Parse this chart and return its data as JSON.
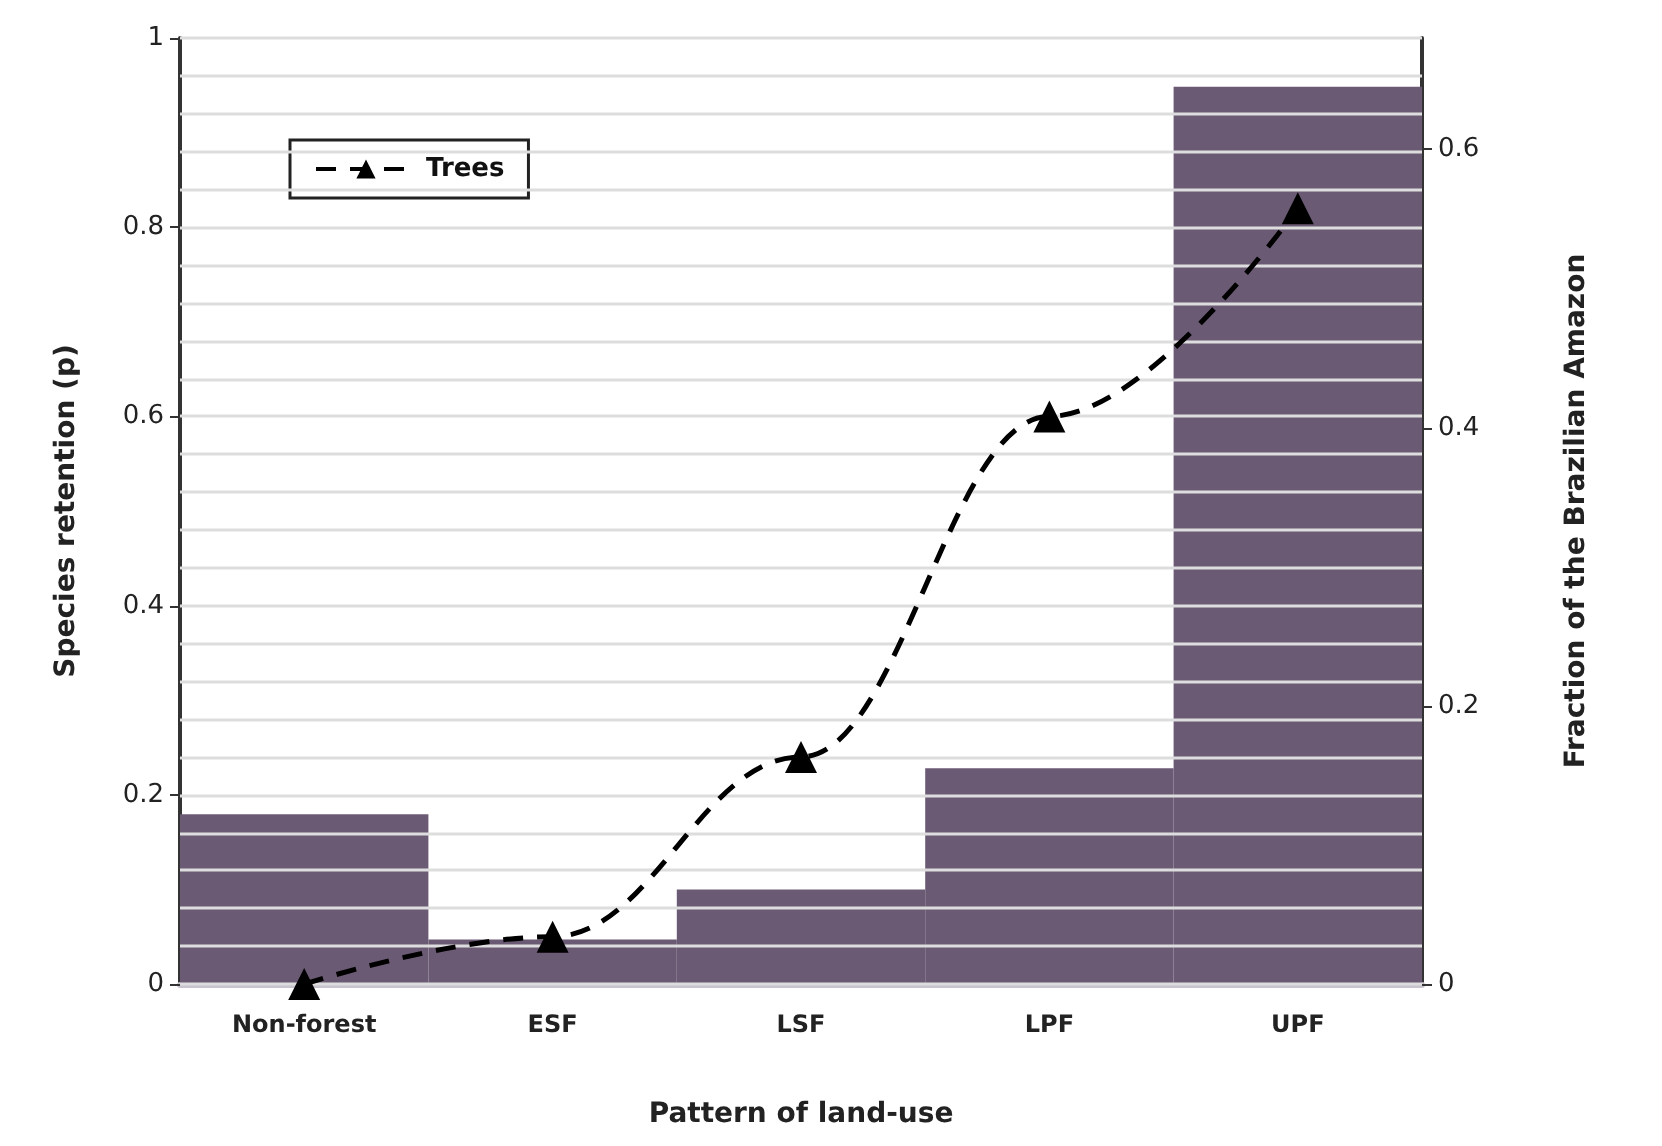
{
  "chart_data": {
    "type": "bar",
    "categories": [
      "Non-forest",
      "ESF",
      "LSF",
      "LPF",
      "UPF"
    ],
    "xlabel": "Pattern of land-use",
    "ylabel": "Species retention (p)",
    "y2label": "Fraction of the Brazilian Amazon",
    "series": [
      {
        "axis": "y2",
        "color": "#6b5a74",
        "values": [
          0.122,
          0.032,
          0.068,
          0.155,
          0.645
        ]
      },
      {
        "type": "line",
        "name": "Trees",
        "color": "#000000",
        "marker": "triangle",
        "line_style": "dashed",
        "values": [
          0,
          0.05,
          0.24,
          0.6,
          0.82
        ]
      }
    ],
    "ylim": [
      0,
      1
    ],
    "yticks": [
      0,
      {
        "value": 0.04,
        "label": null
      },
      {
        "value": 0.08,
        "label": null
      },
      {
        "value": 0.12,
        "label": null
      },
      {
        "value": 0.16,
        "label": null
      },
      0.2,
      {
        "value": 0.24,
        "label": null
      },
      {
        "value": 0.28,
        "label": null
      },
      {
        "value": 0.32,
        "label": null
      },
      {
        "value": 0.36,
        "label": null
      },
      0.4,
      {
        "value": 0.44,
        "label": null
      },
      {
        "value": 0.48,
        "label": null
      },
      {
        "value": 0.52,
        "label": null
      },
      {
        "value": 0.56,
        "label": null
      },
      0.6,
      {
        "value": 0.64,
        "label": null
      },
      {
        "value": 0.68,
        "label": null
      },
      {
        "value": 0.72,
        "label": null
      },
      {
        "value": 0.76,
        "label": null
      },
      0.8,
      {
        "value": 0.84,
        "label": null
      },
      {
        "value": 0.88,
        "label": null
      },
      {
        "value": 0.92,
        "label": null
      },
      {
        "value": 0.96,
        "label": null
      },
      1
    ],
    "y2lim": [
      0,
      0.68
    ],
    "y2ticks": [
      0,
      0.2,
      0.4,
      0.6
    ],
    "grid": "y",
    "legend": "top left"
  }
}
